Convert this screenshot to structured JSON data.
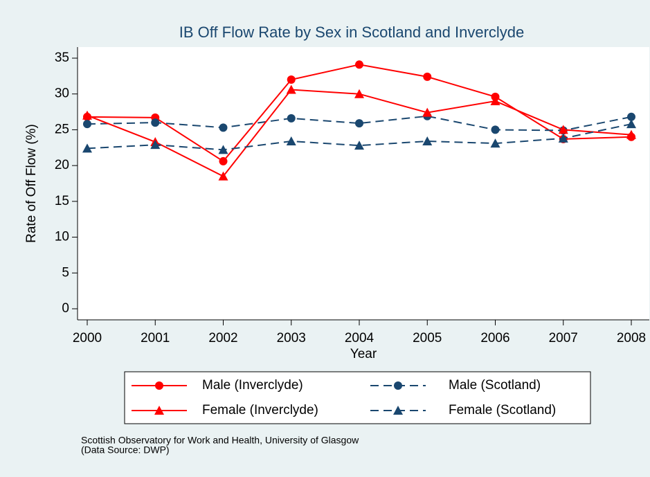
{
  "chart_data": {
    "type": "line",
    "title": "IB Off Flow Rate by Sex in Scotland and Inverclyde",
    "x_label": "Year",
    "y_label": "Rate of Off Flow (%)",
    "x": [
      2000,
      2001,
      2002,
      2003,
      2004,
      2005,
      2006,
      2007,
      2008
    ],
    "xlim": [
      2000,
      2008
    ],
    "xticks": [
      2000,
      2001,
      2002,
      2003,
      2004,
      2005,
      2006,
      2007,
      2008
    ],
    "ylim": [
      0,
      35
    ],
    "yticks": [
      0,
      5,
      10,
      15,
      20,
      25,
      30,
      35
    ],
    "series": [
      {
        "name": "Male (Inverclyde)",
        "color": "#ff0000",
        "line_style": "solid",
        "marker": "circle",
        "values": [
          26.8,
          26.7,
          20.6,
          32.0,
          34.1,
          32.4,
          29.6,
          23.7,
          24.0
        ]
      },
      {
        "name": "Male (Scotland)",
        "color": "#1a476f",
        "line_style": "dash",
        "marker": "circle",
        "values": [
          25.8,
          26.0,
          25.3,
          26.6,
          25.9,
          26.9,
          25.0,
          24.9,
          26.8
        ]
      },
      {
        "name": "Female (Inverclyde)",
        "color": "#ff0000",
        "line_style": "solid",
        "marker": "triangle",
        "values": [
          27.0,
          23.3,
          18.5,
          30.6,
          30.0,
          27.4,
          29.0,
          25.0,
          24.3
        ]
      },
      {
        "name": "Female (Scotland)",
        "color": "#1a476f",
        "line_style": "dash",
        "marker": "triangle",
        "values": [
          22.4,
          22.9,
          22.2,
          23.4,
          22.8,
          23.4,
          23.1,
          23.8,
          25.8
        ]
      }
    ],
    "note": [
      "Scottish Observatory for Work and Health, University of Glasgow",
      "(Data Source: DWP)"
    ]
  }
}
